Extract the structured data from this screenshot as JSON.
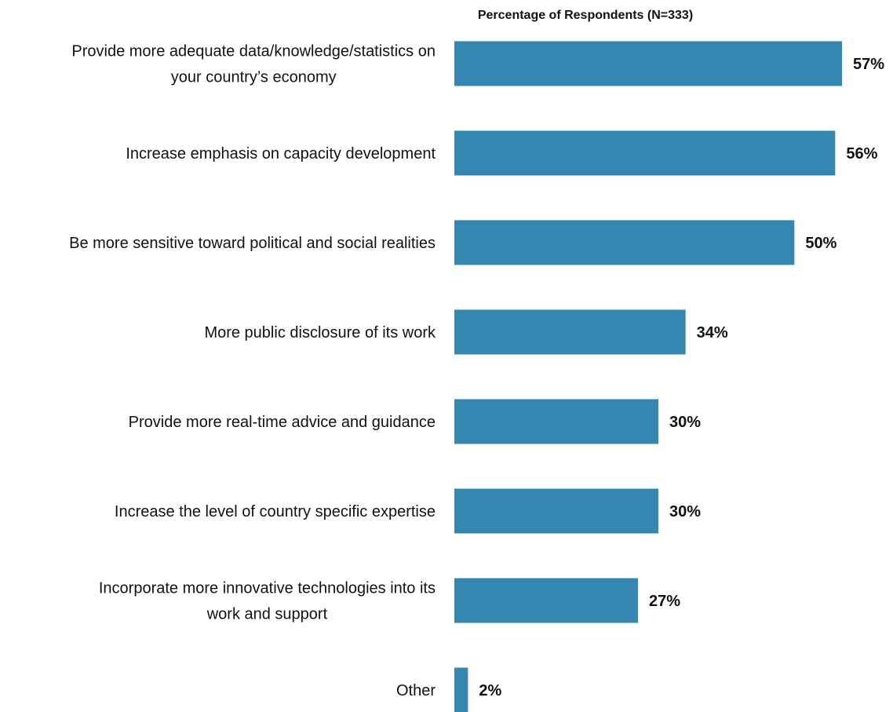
{
  "chart_data": {
    "type": "bar",
    "orientation": "horizontal",
    "title": "Percentage of Respondents (N=333)",
    "xlabel": "",
    "ylabel": "",
    "categories": [
      [
        "Provide more adequate data/knowledge/statistics on",
        "your country’s economy"
      ],
      [
        "Increase emphasis on capacity development"
      ],
      [
        "Be more sensitive toward political and social realities"
      ],
      [
        "More public disclosure of its work"
      ],
      [
        "Provide more real-time advice and guidance"
      ],
      [
        "Increase the level of country specific expertise"
      ],
      [
        "Incorporate more innovative technologies into its",
        "work and support"
      ],
      [
        "Other"
      ]
    ],
    "values": [
      57,
      56,
      50,
      34,
      30,
      30,
      27,
      2
    ],
    "value_labels": [
      "57%",
      "56%",
      "50%",
      "34%",
      "30%",
      "30%",
      "27%",
      "2%"
    ],
    "xlim": [
      0,
      57
    ],
    "grid": false,
    "legend": "none",
    "bar_color": "#3387b1"
  }
}
